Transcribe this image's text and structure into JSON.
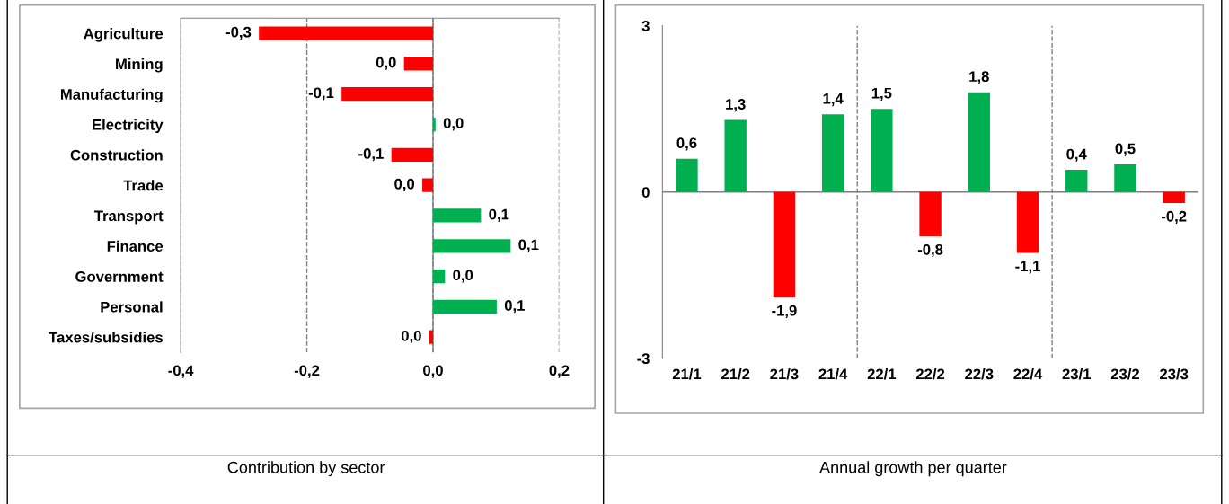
{
  "chart_data": [
    {
      "type": "bar",
      "orientation": "horizontal",
      "title": "Contribution by sector",
      "categories": [
        "Agriculture",
        "Mining",
        "Manufacturing",
        "Electricity",
        "Construction",
        "Trade",
        "Transport",
        "Finance",
        "Government",
        "Personal",
        "Taxes/subsidies"
      ],
      "values": [
        -0.276,
        -0.046,
        -0.145,
        0.004,
        -0.066,
        -0.017,
        0.076,
        0.123,
        0.019,
        0.101,
        -0.006
      ],
      "colors": [
        "#ff0000",
        "#ff0000",
        "#ff0000",
        "#00b050",
        "#ff0000",
        "#ff0000",
        "#00b050",
        "#00b050",
        "#00b050",
        "#00b050",
        "#ff0000"
      ],
      "value_labels": [
        "-0,3",
        "0,0",
        "-0,1",
        "0,0",
        "-0,1",
        "0,0",
        "0,1",
        "0,1",
        "0,0",
        "0,1",
        "0,0"
      ],
      "xlim": [
        -0.4,
        0.2
      ],
      "xticks": [
        {
          "value": -0.4,
          "label": "-0,4"
        },
        {
          "value": -0.2,
          "label": "-0,2"
        },
        {
          "value": 0.0,
          "label": "0,0"
        },
        {
          "value": 0.2,
          "label": "0,2"
        }
      ],
      "grid": "x"
    },
    {
      "type": "bar",
      "title": "Annual growth per quarter",
      "categories": [
        "21/1",
        "21/2",
        "21/3",
        "21/4",
        "22/1",
        "22/2",
        "22/3",
        "22/4",
        "23/1",
        "23/2",
        "23/3"
      ],
      "values": [
        0.6,
        1.3,
        -1.9,
        1.4,
        1.5,
        -0.8,
        1.8,
        -1.1,
        0.4,
        0.5,
        -0.2
      ],
      "colors": [
        "#00b050",
        "#00b050",
        "#ff0000",
        "#00b050",
        "#00b050",
        "#ff0000",
        "#00b050",
        "#ff0000",
        "#00b050",
        "#00b050",
        "#ff0000"
      ],
      "value_labels": [
        "0,6",
        "1,3",
        "-1,9",
        "1,4",
        "1,5",
        "-0,8",
        "1,8",
        "-1,1",
        "0,4",
        "0,5",
        "-0,2"
      ],
      "ylim": [
        -3,
        3
      ],
      "yticks": [
        -3,
        0,
        3
      ]
    }
  ]
}
